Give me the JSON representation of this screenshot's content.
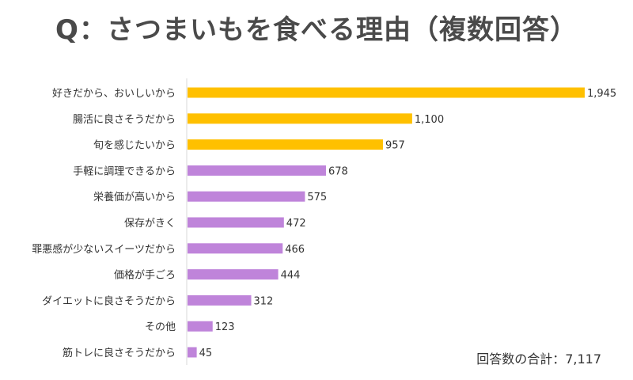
{
  "chart_data": {
    "type": "bar",
    "orientation": "horizontal",
    "title": "Q：さつまいもを食べる理由（複数回答）",
    "xlabel": "",
    "ylabel": "",
    "xlim": [
      0,
      2000
    ],
    "categories": [
      "好きだから、おいしいから",
      "腸活に良さそうだから",
      "旬を感じたいから",
      "手軽に調理できるから",
      "栄養価が高いから",
      "保存がきく",
      "罪悪感が少ないスイーツだから",
      "価格が手ごろ",
      "ダイエットに良さそうだから",
      "その他",
      "筋トレに良さそうだから"
    ],
    "values": [
      1945,
      1100,
      957,
      678,
      575,
      472,
      466,
      444,
      312,
      123,
      45
    ],
    "value_labels": [
      "1,945",
      "1,100",
      "957",
      "678",
      "575",
      "472",
      "466",
      "444",
      "312",
      "123",
      "45"
    ],
    "colors": [
      "#FFC000",
      "#FFC000",
      "#FFC000",
      "#BF84DA",
      "#BF84DA",
      "#BF84DA",
      "#BF84DA",
      "#BF84DA",
      "#BF84DA",
      "#BF84DA",
      "#BF84DA"
    ],
    "total_label": "回答数の合計：7,117"
  }
}
